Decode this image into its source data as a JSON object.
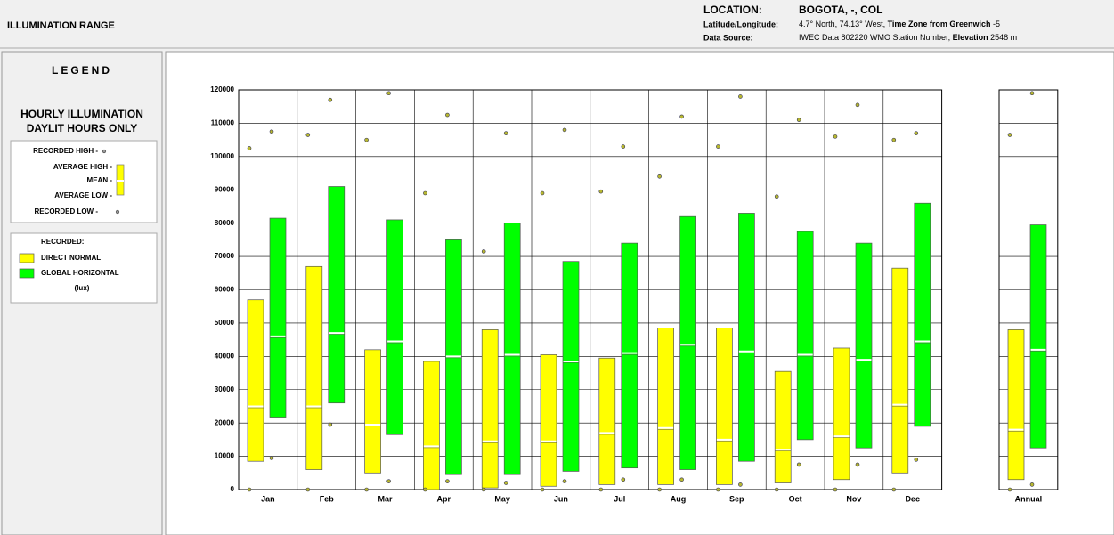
{
  "header": {
    "title": "ILLUMINATION RANGE",
    "location_label": "LOCATION:",
    "location": "BOGOTA, -, COL",
    "latlon_label": "Latitude/Longitude:",
    "latlon": [
      "4.7° North, 74.13° West, ",
      "Time Zone from Greenwich",
      " -5"
    ],
    "source_label": "Data Source:",
    "source": [
      "IWEC Data    802220 WMO Station Number, ",
      "Elevation",
      " 2548 m"
    ]
  },
  "legend": {
    "title": "LEGEND",
    "heading": [
      "HOURLY ILLUMINATION",
      "DAYLIT HOURS ONLY"
    ],
    "key": [
      "RECORDED HIGH -",
      "AVERAGE HIGH -",
      "MEAN -",
      "AVERAGE LOW -",
      "RECORDED LOW -"
    ],
    "recorded": "RECORDED:",
    "unit": "(lux)"
  },
  "chart_data": {
    "type": "range-box",
    "categories": [
      "Jan",
      "Feb",
      "Mar",
      "Apr",
      "May",
      "Jun",
      "Jul",
      "Aug",
      "Sep",
      "Oct",
      "Nov",
      "Dec",
      "Annual"
    ],
    "ylim": [
      0,
      120000
    ],
    "yticks": [
      0,
      10000,
      20000,
      30000,
      40000,
      50000,
      60000,
      70000,
      80000,
      90000,
      100000,
      110000,
      120000
    ],
    "grid": true,
    "series": [
      {
        "name": "DIRECT NORMAL",
        "color": "#ffff00",
        "recorded_high": [
          102500,
          106500,
          105000,
          89000,
          71500,
          89000,
          89500,
          94000,
          103000,
          88000,
          106000,
          105000,
          106500
        ],
        "average_high": [
          57000,
          67000,
          42000,
          38500,
          48000,
          40500,
          39500,
          48500,
          48500,
          35500,
          42500,
          66500,
          48000
        ],
        "mean": [
          25000,
          25000,
          19500,
          13000,
          14500,
          14500,
          17000,
          18500,
          15000,
          12000,
          16000,
          25500,
          18000
        ],
        "average_low": [
          8500,
          6000,
          5000,
          0,
          500,
          1000,
          1500,
          1500,
          1500,
          2000,
          3000,
          5000,
          3000
        ],
        "recorded_low": [
          0,
          0,
          0,
          0,
          0,
          0,
          0,
          0,
          0,
          0,
          0,
          0,
          0
        ]
      },
      {
        "name": "GLOBAL HORIZONTAL",
        "color": "#00ff00",
        "recorded_high": [
          107500,
          117000,
          119000,
          112500,
          107000,
          108000,
          103000,
          112000,
          118000,
          111000,
          115500,
          107000,
          119000
        ],
        "average_high": [
          81500,
          91000,
          81000,
          75000,
          80000,
          68500,
          74000,
          82000,
          83000,
          77500,
          74000,
          86000,
          79500
        ],
        "mean": [
          46000,
          47000,
          44500,
          40000,
          40500,
          38500,
          41000,
          43500,
          41500,
          40500,
          39000,
          44500,
          42000
        ],
        "average_low": [
          21500,
          26000,
          16500,
          4500,
          4500,
          5500,
          6500,
          6000,
          8500,
          15000,
          12500,
          19000,
          12500
        ],
        "recorded_low": [
          9500,
          19500,
          2500,
          2500,
          2000,
          2500,
          3000,
          3000,
          1500,
          7500,
          7500,
          9000,
          1500
        ]
      }
    ]
  }
}
